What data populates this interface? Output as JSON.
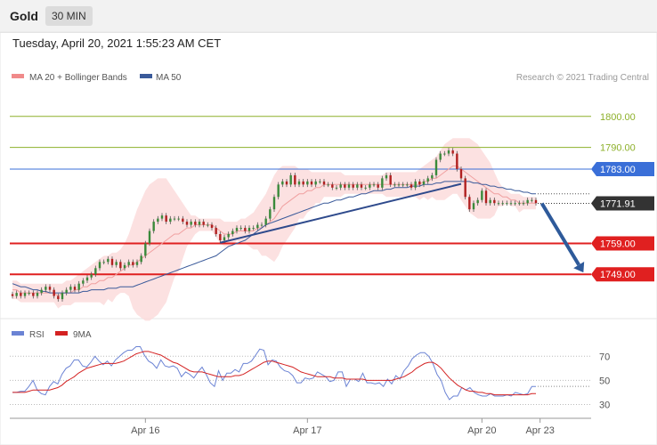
{
  "header": {
    "instrument": "Gold",
    "timeframe": "30 MIN",
    "datetime": "Tuesday, April 20, 2021 1:55:23 AM CET"
  },
  "chart_data": [
    {
      "type": "candlestick",
      "legend": [
        {
          "label": "MA 20 + Bollinger Bands",
          "color": "#f08a8a"
        },
        {
          "label": "MA 50",
          "color": "#3a5a9a"
        }
      ],
      "credit": "Research © 2021 Trading Central",
      "ylim": [
        1737,
        1810
      ],
      "x_ticks": [
        {
          "label": "Apr 16",
          "index": 32
        },
        {
          "label": "Apr 17",
          "index": 71
        },
        {
          "label": "Apr 20",
          "index": 113
        },
        {
          "label": "Apr 23",
          "index": 127
        }
      ],
      "levels": [
        {
          "value": 1800.0,
          "label": "1800.00",
          "color": "#8db02a",
          "style": "thin",
          "tag": "text"
        },
        {
          "value": 1790.0,
          "label": "1790.00",
          "color": "#8db02a",
          "style": "thin",
          "tag": "text"
        },
        {
          "value": 1783.0,
          "label": "1783.00",
          "color": "#3a6fd8",
          "style": "thin",
          "tag": "box"
        },
        {
          "value": 1771.91,
          "label": "1771.91",
          "color": "#333333",
          "style": "dotted",
          "tag": "box"
        },
        {
          "value": 1759.0,
          "label": "1759.00",
          "color": "#e02020",
          "style": "thick",
          "tag": "box"
        },
        {
          "value": 1749.0,
          "label": "1749.00",
          "color": "#e02020",
          "style": "thick",
          "tag": "box"
        }
      ],
      "trend_line": [
        [
          50,
          1759.2
        ],
        [
          108,
          1778.2
        ]
      ],
      "forecast_arrow": [
        [
          127,
          1771.9
        ],
        [
          137,
          1749.6
        ]
      ],
      "close": [
        1742,
        1743,
        1742,
        1743,
        1743,
        1742,
        1743,
        1744,
        1745,
        1744,
        1742,
        1741,
        1743,
        1744,
        1745,
        1744,
        1746,
        1747,
        1748,
        1749,
        1751,
        1753,
        1753,
        1754,
        1752,
        1753,
        1751,
        1752,
        1753,
        1752,
        1753,
        1755,
        1759,
        1763,
        1766,
        1767,
        1768,
        1766,
        1767,
        1767,
        1767,
        1766,
        1765,
        1766,
        1765,
        1766,
        1765,
        1765,
        1764,
        1762,
        1760,
        1761,
        1762,
        1763,
        1764,
        1764,
        1763,
        1764,
        1764,
        1765,
        1765,
        1767,
        1770,
        1774,
        1778,
        1779,
        1778,
        1781,
        1778,
        1779,
        1778,
        1779,
        1778,
        1779,
        1779,
        1778,
        1778,
        1777,
        1777,
        1778,
        1777,
        1778,
        1777,
        1778,
        1777,
        1777,
        1778,
        1778,
        1777,
        1780,
        1781,
        1778,
        1778,
        1778,
        1778,
        1778,
        1777,
        1779,
        1778,
        1779,
        1780,
        1781,
        1786,
        1788,
        1788,
        1789,
        1788,
        1783,
        1780,
        1774,
        1770,
        1772,
        1773,
        1776,
        1772,
        1773,
        1772,
        1772,
        1772,
        1772,
        1772,
        1772,
        1772,
        1772,
        1773,
        1773,
        1772
      ],
      "ma20": [
        1744,
        1744,
        1743,
        1743,
        1743,
        1743,
        1743,
        1743,
        1743,
        1743,
        1743,
        1742,
        1743,
        1743,
        1743,
        1744,
        1744,
        1745,
        1745,
        1746,
        1746,
        1747,
        1747,
        1748,
        1748,
        1749,
        1750,
        1751,
        1752,
        1752,
        1753,
        1754,
        1755,
        1756,
        1757,
        1758,
        1759,
        1760,
        1761,
        1762,
        1762,
        1763,
        1764,
        1764,
        1765,
        1765,
        1765,
        1765,
        1765,
        1764,
        1763,
        1762,
        1762,
        1762,
        1763,
        1763,
        1763,
        1763,
        1763,
        1764,
        1764,
        1765,
        1766,
        1767,
        1769,
        1771,
        1772,
        1773,
        1774,
        1775,
        1775,
        1776,
        1776,
        1777,
        1777,
        1778,
        1778,
        1778,
        1778,
        1778,
        1778,
        1778,
        1778,
        1778,
        1778,
        1778,
        1778,
        1778,
        1778,
        1778,
        1778,
        1778,
        1778,
        1778,
        1778,
        1778,
        1778,
        1778,
        1778,
        1779,
        1779,
        1780,
        1780,
        1781,
        1782,
        1783,
        1784,
        1784,
        1783,
        1782,
        1781,
        1780,
        1779,
        1778,
        1777,
        1776,
        1775,
        1775,
        1774,
        1774,
        1773,
        1773,
        1772,
        1772,
        1772,
        1772,
        1772
      ],
      "bb_upper": [
        1747,
        1747,
        1746,
        1746,
        1746,
        1746,
        1746,
        1746,
        1746,
        1746,
        1746,
        1746,
        1746,
        1747,
        1747,
        1748,
        1749,
        1750,
        1751,
        1752,
        1753,
        1754,
        1755,
        1755,
        1756,
        1756,
        1757,
        1759,
        1762,
        1766,
        1770,
        1773,
        1776,
        1778,
        1779,
        1780,
        1780,
        1780,
        1778,
        1776,
        1774,
        1772,
        1770,
        1768,
        1768,
        1767,
        1767,
        1767,
        1767,
        1767,
        1767,
        1766,
        1766,
        1766,
        1766,
        1767,
        1767,
        1768,
        1769,
        1771,
        1773,
        1775,
        1778,
        1781,
        1783,
        1784,
        1784,
        1784,
        1784,
        1783,
        1783,
        1783,
        1782,
        1782,
        1782,
        1782,
        1782,
        1782,
        1782,
        1782,
        1781,
        1781,
        1781,
        1781,
        1781,
        1781,
        1781,
        1781,
        1781,
        1781,
        1782,
        1782,
        1782,
        1782,
        1782,
        1782,
        1782,
        1782,
        1783,
        1784,
        1785,
        1786,
        1787,
        1789,
        1791,
        1792,
        1793,
        1793,
        1793,
        1793,
        1793,
        1792,
        1791,
        1789,
        1787,
        1785,
        1782,
        1779,
        1777,
        1776,
        1775,
        1775,
        1775,
        1774,
        1774,
        1774,
        1774
      ],
      "bb_lower": [
        1741,
        1741,
        1740,
        1740,
        1740,
        1740,
        1740,
        1740,
        1740,
        1740,
        1740,
        1738,
        1739,
        1739,
        1739,
        1740,
        1740,
        1740,
        1740,
        1740,
        1740,
        1740,
        1739,
        1741,
        1740,
        1742,
        1743,
        1743,
        1742,
        1738,
        1736,
        1735,
        1734,
        1734,
        1735,
        1736,
        1738,
        1740,
        1744,
        1748,
        1750,
        1754,
        1758,
        1760,
        1762,
        1763,
        1763,
        1763,
        1763,
        1761,
        1759,
        1758,
        1758,
        1758,
        1760,
        1759,
        1759,
        1758,
        1757,
        1757,
        1755,
        1755,
        1754,
        1753,
        1755,
        1758,
        1760,
        1762,
        1764,
        1767,
        1767,
        1769,
        1770,
        1772,
        1772,
        1774,
        1774,
        1774,
        1774,
        1774,
        1775,
        1775,
        1775,
        1775,
        1775,
        1775,
        1775,
        1775,
        1775,
        1775,
        1774,
        1774,
        1774,
        1774,
        1774,
        1774,
        1774,
        1774,
        1773,
        1774,
        1773,
        1774,
        1773,
        1773,
        1773,
        1774,
        1775,
        1775,
        1773,
        1771,
        1769,
        1768,
        1767,
        1767,
        1767,
        1767,
        1768,
        1771,
        1771,
        1772,
        1771,
        1771,
        1769,
        1770,
        1770,
        1770,
        1770
      ],
      "ma50": [
        1746,
        1745.5,
        1745,
        1745,
        1744.5,
        1744,
        1744,
        1743.5,
        1743.5,
        1743,
        1743,
        1743,
        1743,
        1743,
        1743,
        1743,
        1743,
        1743.5,
        1743.5,
        1744,
        1744,
        1744,
        1744,
        1744.5,
        1744.5,
        1744.5,
        1745,
        1745,
        1745,
        1745,
        1745.5,
        1746,
        1746.5,
        1747,
        1747.5,
        1748,
        1748.5,
        1749,
        1749.5,
        1750,
        1750.5,
        1751,
        1751.5,
        1752,
        1752.5,
        1753,
        1753.5,
        1754,
        1754.5,
        1755,
        1756,
        1757,
        1758,
        1758.5,
        1759,
        1759.5,
        1760,
        1761,
        1762,
        1763,
        1764,
        1765,
        1765.5,
        1766,
        1766.5,
        1767,
        1767.5,
        1768,
        1768.5,
        1769,
        1769.5,
        1770,
        1770.5,
        1771,
        1771.5,
        1772,
        1772,
        1772.5,
        1773,
        1773,
        1773.5,
        1774,
        1774,
        1774.5,
        1775,
        1775,
        1775.5,
        1776,
        1776,
        1776,
        1776.5,
        1776.5,
        1777,
        1777,
        1777,
        1777,
        1777.5,
        1777.5,
        1777.5,
        1778,
        1778,
        1778,
        1778.5,
        1778.5,
        1779,
        1779,
        1779,
        1779,
        1779,
        1779,
        1779,
        1778.5,
        1778.5,
        1778,
        1778,
        1777.5,
        1777.5,
        1777,
        1777,
        1776.5,
        1776.5,
        1776,
        1776,
        1775.5,
        1775.5,
        1775,
        1775
      ]
    },
    {
      "type": "line",
      "legend": [
        {
          "label": "RSI",
          "color": "#6b83d4"
        },
        {
          "label": "9MA",
          "color": "#d42222"
        }
      ],
      "ylim": [
        20,
        85
      ],
      "y_ticks": [
        70,
        50,
        30
      ],
      "last_value": 45,
      "series": [
        {
          "name": "RSI",
          "values": [
            40,
            40,
            41,
            41,
            45,
            50,
            42,
            39,
            38,
            45,
            49,
            47,
            55,
            60,
            62,
            67,
            67,
            62,
            61,
            65,
            70,
            66,
            63,
            66,
            62,
            67,
            70,
            73,
            75,
            75,
            78,
            78,
            71,
            66,
            64,
            60,
            67,
            62,
            61,
            62,
            60,
            53,
            57,
            55,
            52,
            57,
            61,
            55,
            48,
            45,
            58,
            50,
            56,
            56,
            59,
            57,
            64,
            64,
            66,
            71,
            76,
            75,
            63,
            67,
            66,
            61,
            58,
            57,
            54,
            48,
            48,
            52,
            51,
            52,
            57,
            55,
            53,
            49,
            50,
            57,
            57,
            45,
            51,
            51,
            49,
            56,
            48,
            48,
            47,
            48,
            45,
            51,
            47,
            54,
            51,
            58,
            62,
            68,
            71,
            73,
            73,
            70,
            64,
            55,
            50,
            40,
            34,
            37,
            37,
            44,
            42,
            44,
            40,
            38,
            37,
            37,
            39,
            37,
            37,
            37,
            38,
            37,
            40,
            39,
            38,
            39,
            45,
            45
          ]
        },
        {
          "name": "9MA",
          "values": [
            40,
            40,
            40,
            40,
            41,
            42,
            42,
            42,
            42,
            42,
            43,
            44,
            46,
            49,
            51,
            53,
            56,
            58,
            60,
            61,
            62,
            63,
            64,
            64,
            64,
            64,
            65,
            66,
            68,
            70,
            72,
            73,
            74,
            74,
            73,
            72,
            71,
            69,
            67,
            65,
            64,
            62,
            60,
            58,
            57,
            57,
            57,
            56,
            55,
            54,
            53,
            53,
            53,
            53,
            54,
            54,
            55,
            57,
            59,
            61,
            63,
            65,
            66,
            66,
            65,
            64,
            63,
            62,
            61,
            59,
            57,
            56,
            55,
            54,
            53,
            53,
            53,
            53,
            52,
            52,
            52,
            51,
            51,
            51,
            51,
            51,
            50,
            50,
            50,
            50,
            50,
            50,
            50,
            51,
            52,
            53,
            55,
            57,
            60,
            62,
            64,
            65,
            65,
            63,
            60,
            56,
            52,
            49,
            46,
            44,
            42,
            41,
            41,
            40,
            40,
            39,
            39,
            38,
            38,
            38,
            38,
            38,
            38,
            38,
            38,
            38,
            39,
            39
          ]
        }
      ]
    }
  ]
}
